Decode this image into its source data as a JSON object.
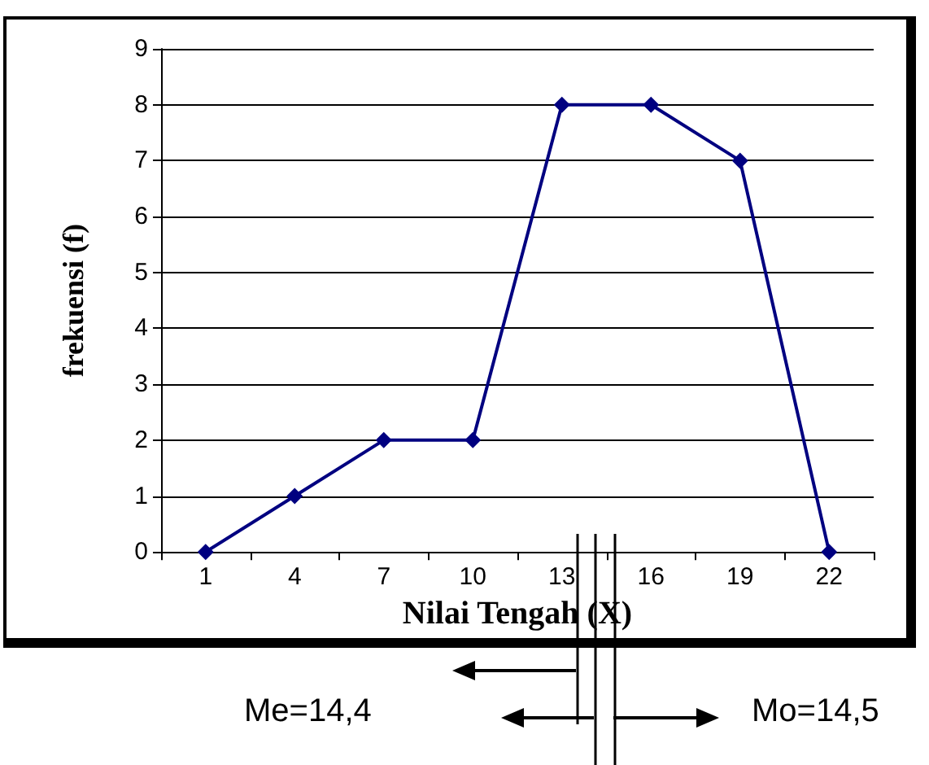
{
  "chart_data": {
    "type": "line",
    "xlabel": "Nilai Tengah (X)",
    "ylabel": "frekuensi (f)",
    "categories": [
      "1",
      "4",
      "7",
      "10",
      "13",
      "16",
      "19",
      "22"
    ],
    "series": [
      {
        "color": "#000080",
        "values": [
          0,
          1,
          2,
          2,
          8,
          8,
          7,
          0
        ]
      }
    ],
    "ylim": [
      0,
      9
    ],
    "yticks": [
      0,
      1,
      2,
      3,
      4,
      5,
      6,
      7,
      8,
      9
    ],
    "grid": "y",
    "marker": "diamond",
    "line_style": "solid",
    "annotations": [
      "Me=14,4",
      "Mo=14,5"
    ]
  }
}
